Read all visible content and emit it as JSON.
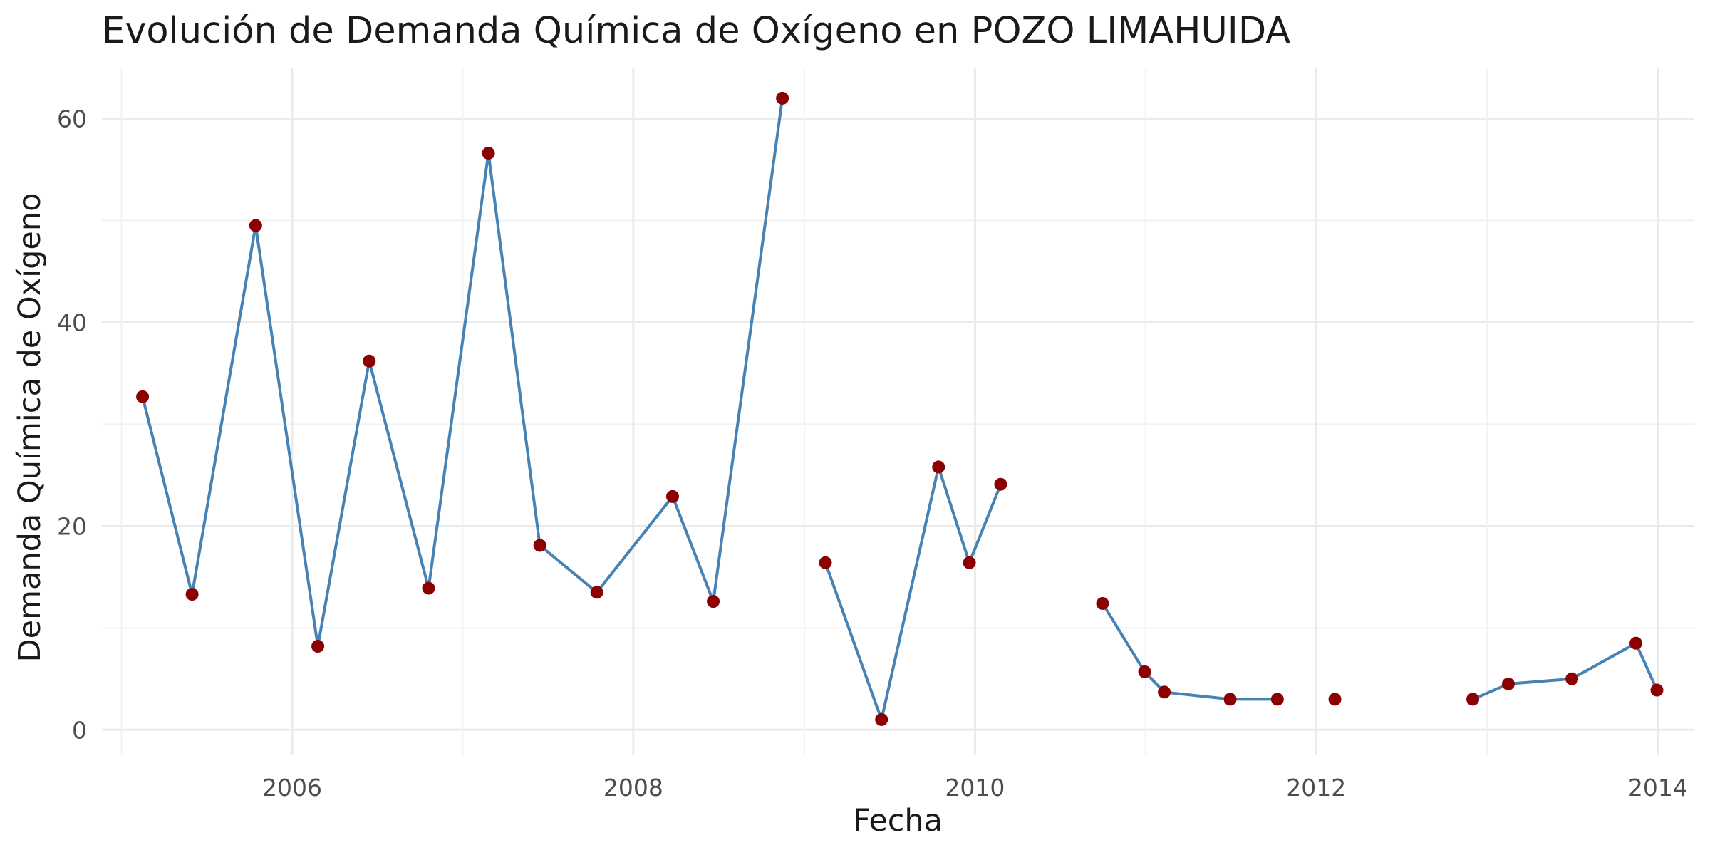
{
  "chart_data": {
    "type": "line",
    "title": "Evolución de Demanda Química de Oxígeno en POZO LIMAHUIDA",
    "xlabel": "Fecha",
    "ylabel": "Demanda Química de Oxígeno",
    "x_ticks": [
      "2006",
      "2008",
      "2010",
      "2012",
      "2014"
    ],
    "y_ticks": [
      "0",
      "20",
      "40",
      "60"
    ],
    "xlim": [
      "2004-11-20",
      "2014-03-20"
    ],
    "ylim": [
      -2.5,
      65
    ],
    "grid": true,
    "legend": "none",
    "colors": {
      "line": "#4682b4",
      "point": "#8b0000"
    },
    "series": [
      {
        "x": [
          "2005-02-15",
          "2005-06-01",
          "2005-10-15",
          "2006-02-25",
          "2006-06-15",
          "2006-10-20",
          "2007-02-25",
          "2007-06-15",
          "2007-10-15",
          "2008-03-25",
          "2008-06-20",
          "2008-11-15",
          "2009-02-15",
          "2009-06-15",
          "2009-10-15",
          "2009-12-20",
          "2010-02-25",
          "2010-10-01",
          "2010-12-30",
          "2011-02-10",
          "2011-07-01",
          "2011-10-10",
          "2012-02-10",
          "2012-12-01",
          "2013-02-15",
          "2013-07-01",
          "2013-11-15",
          "2013-12-30"
        ],
        "y": [
          32.7,
          13.3,
          49.5,
          8.2,
          36.2,
          13.9,
          56.6,
          18.1,
          13.5,
          22.9,
          12.6,
          62.0,
          16.4,
          1.0,
          25.8,
          16.4,
          24.1,
          12.4,
          5.7,
          3.7,
          3.0,
          3.0,
          3.0,
          3.0,
          4.5,
          5.0,
          8.5,
          3.9
        ],
        "segments": [
          [
            0,
            11
          ],
          [
            12,
            16
          ],
          [
            17,
            21
          ],
          [
            22,
            22
          ],
          [
            23,
            27
          ]
        ]
      }
    ]
  }
}
